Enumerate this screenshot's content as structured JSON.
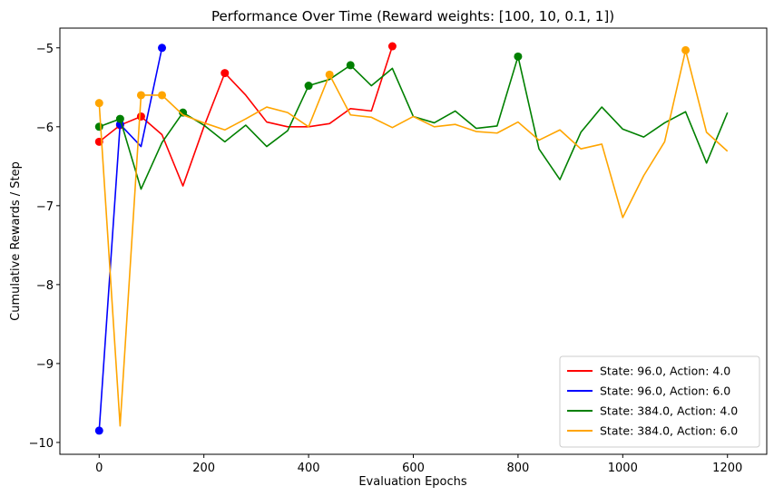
{
  "chart_data": {
    "type": "line",
    "title": "Performance Over Time (Reward weights: [100, 10, 0.1, 1])",
    "xlabel": "Evaluation Epochs",
    "ylabel": "Cumulative Rewards / Step",
    "xlim": [
      -75,
      1275
    ],
    "ylim": [
      -10.15,
      -4.75
    ],
    "xticks": [
      0,
      200,
      400,
      600,
      800,
      1000,
      1200
    ],
    "yticks": [
      -10,
      -9,
      -8,
      -7,
      -6,
      -5
    ],
    "xtick_labels": [
      "0",
      "200",
      "400",
      "600",
      "800",
      "1000",
      "1200"
    ],
    "ytick_labels": [
      "−10",
      "−9",
      "−8",
      "−7",
      "−6",
      "−5"
    ],
    "grid": false,
    "legend_position": "lower right",
    "series": [
      {
        "name": "State: 96.0, Action: 4.0",
        "color": "#ff0000",
        "x": [
          0,
          40,
          80,
          120,
          160,
          200,
          240,
          280,
          320,
          360,
          400,
          440,
          480,
          520,
          560
        ],
        "y": [
          -6.19,
          -5.98,
          -5.87,
          -6.1,
          -6.75,
          -6.0,
          -5.32,
          -5.6,
          -5.94,
          -6.0,
          -6.0,
          -5.96,
          -5.77,
          -5.8,
          -4.98
        ],
        "markers_x": [
          0,
          40,
          80,
          240,
          560
        ],
        "markers_y": [
          -6.19,
          -5.98,
          -5.87,
          -5.32,
          -4.98
        ]
      },
      {
        "name": "State: 96.0, Action: 6.0",
        "color": "#0000ff",
        "x": [
          0,
          40,
          80,
          120
        ],
        "y": [
          -9.85,
          -5.97,
          -6.25,
          -5.0
        ],
        "markers_x": [
          0,
          40,
          120
        ],
        "markers_y": [
          -9.85,
          -5.97,
          -5.0
        ]
      },
      {
        "name": "State: 384.0, Action: 4.0",
        "color": "#008000",
        "x": [
          0,
          40,
          80,
          120,
          160,
          200,
          240,
          280,
          320,
          360,
          400,
          440,
          480,
          520,
          560,
          600,
          640,
          680,
          720,
          760,
          800,
          840,
          880,
          920,
          960,
          1000,
          1040,
          1080,
          1120,
          1160,
          1200
        ],
        "y": [
          -6.0,
          -5.9,
          -6.79,
          -6.2,
          -5.82,
          -5.98,
          -6.19,
          -5.98,
          -6.25,
          -6.05,
          -5.48,
          -5.4,
          -5.22,
          -5.48,
          -5.26,
          -5.87,
          -5.95,
          -5.8,
          -6.02,
          -5.99,
          -5.11,
          -6.28,
          -6.67,
          -6.07,
          -5.75,
          -6.03,
          -6.13,
          -5.95,
          -5.81,
          -6.46,
          -5.82
        ],
        "markers_x": [
          0,
          40,
          160,
          400,
          480,
          800
        ],
        "markers_y": [
          -6.0,
          -5.9,
          -5.82,
          -5.48,
          -5.22,
          -5.11
        ]
      },
      {
        "name": "State: 384.0, Action: 6.0",
        "color": "#ffa500",
        "x": [
          0,
          40,
          80,
          120,
          160,
          200,
          240,
          280,
          320,
          360,
          400,
          440,
          480,
          520,
          560,
          600,
          640,
          680,
          720,
          760,
          800,
          840,
          880,
          920,
          960,
          1000,
          1040,
          1080,
          1120,
          1160,
          1200
        ],
        "y": [
          -5.7,
          -9.79,
          -5.6,
          -5.6,
          -5.85,
          -5.95,
          -6.04,
          -5.9,
          -5.75,
          -5.82,
          -6.0,
          -5.34,
          -5.85,
          -5.88,
          -6.01,
          -5.87,
          -6.0,
          -5.97,
          -6.06,
          -6.08,
          -5.94,
          -6.17,
          -6.04,
          -6.28,
          -6.22,
          -7.15,
          -6.62,
          -6.19,
          -5.03,
          -6.07,
          -6.31
        ],
        "markers_x": [
          0,
          80,
          120,
          440,
          1120
        ],
        "markers_y": [
          -5.7,
          -5.6,
          -5.6,
          -5.34,
          -5.03
        ]
      }
    ]
  }
}
